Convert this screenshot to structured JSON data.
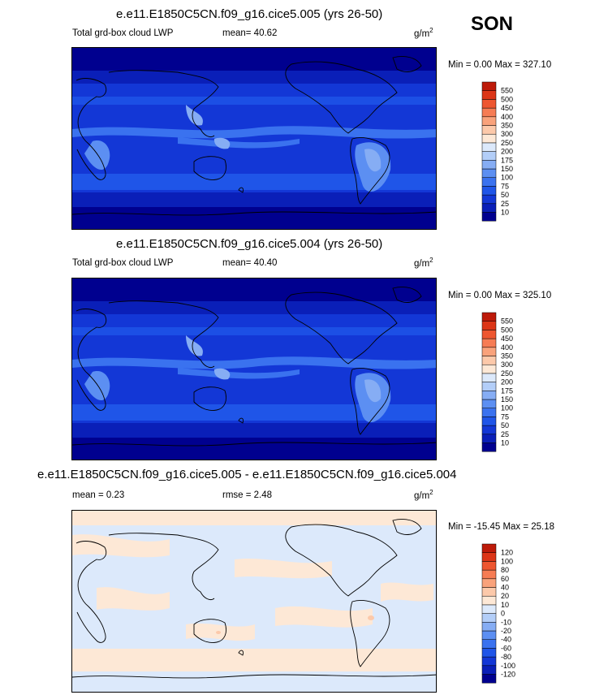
{
  "season": "SON",
  "units_base": "g/m",
  "units_exp": "2",
  "colors": {
    "abs": [
      "#00008f",
      "#0a1fb8",
      "#1337d6",
      "#1f55e8",
      "#3a72ef",
      "#5c8ff2",
      "#86adf4",
      "#b3cef8",
      "#dce9fb",
      "#fde8d6",
      "#fcc9aa",
      "#f9a27b",
      "#f67c54",
      "#ee5630",
      "#dc3517",
      "#bd1a09",
      "#8c0000"
    ],
    "diff": [
      "#00008f",
      "#0a1fb8",
      "#1337d6",
      "#1f55e8",
      "#3a72ef",
      "#5c8ff2",
      "#86adf4",
      "#b3cef8",
      "#dce9fb",
      "#fde8d6",
      "#fcc9aa",
      "#f9a27b",
      "#f67c54",
      "#ee5630",
      "#dc3517",
      "#bd1a09",
      "#8c0000"
    ]
  },
  "panels": [
    {
      "title": "e.e11.E1850C5CN.f09_g16.cice5.005 (yrs 26-50)",
      "left_label": "Total grd-box cloud LWP",
      "mid_label": "mean=  40.62",
      "minmax": "Min =   0.00 Max = 327.10"
    },
    {
      "title": "e.e11.E1850C5CN.f09_g16.cice5.004 (yrs 26-50)",
      "left_label": "Total grd-box cloud LWP",
      "mid_label": "mean=  40.40",
      "minmax": "Min =   0.00 Max = 325.10"
    },
    {
      "title": "e.e11.E1850C5CN.f09_g16.cice5.005 - e.e11.E1850C5CN.f09_g16.cice5.004",
      "left_label": "mean =   0.23",
      "mid_label": "rmse =   2.48",
      "minmax": "Min = -15.45 Max =  25.18"
    }
  ],
  "chart_data": [
    {
      "type": "heatmap",
      "title": "e.e11.E1850C5CN.f09_g16.cice5.005 (yrs 26-50)",
      "variable": "Total grd-box cloud LWP",
      "units": "g/m2",
      "mean": 40.62,
      "min": 0.0,
      "max": 327.1,
      "colorbar_levels": [
        10,
        25,
        50,
        75,
        100,
        150,
        175,
        200,
        250,
        300,
        350,
        400,
        450,
        500,
        550
      ]
    },
    {
      "type": "heatmap",
      "title": "e.e11.E1850C5CN.f09_g16.cice5.004 (yrs 26-50)",
      "variable": "Total grd-box cloud LWP",
      "units": "g/m2",
      "mean": 40.4,
      "min": 0.0,
      "max": 325.1,
      "colorbar_levels": [
        10,
        25,
        50,
        75,
        100,
        150,
        175,
        200,
        250,
        300,
        350,
        400,
        450,
        500,
        550
      ]
    },
    {
      "type": "heatmap",
      "title": "e.e11.E1850C5CN.f09_g16.cice5.005 - e.e11.E1850C5CN.f09_g16.cice5.004",
      "units": "g/m2",
      "mean": 0.23,
      "rmse": 2.48,
      "min": -15.45,
      "max": 25.18,
      "colorbar_levels": [
        -120,
        -100,
        -80,
        -60,
        -40,
        -20,
        -10,
        0,
        10,
        20,
        40,
        60,
        80,
        100,
        120
      ]
    }
  ]
}
